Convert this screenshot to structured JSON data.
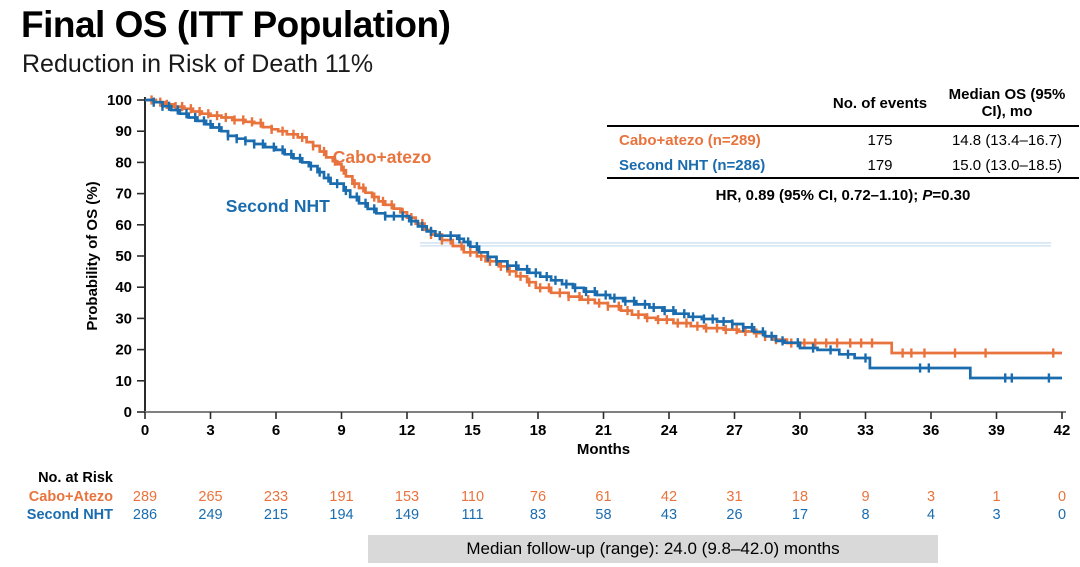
{
  "header": {
    "title": "Final OS (ITT Population)",
    "subtitle": "Reduction in Risk of Death 11%"
  },
  "colors": {
    "cabo": "#e8733c",
    "nht": "#1a6cae",
    "axis_y": "#2b2b2b",
    "axis_x": "#808080",
    "tick_text": "#000000",
    "ref_line": "#ccdff0",
    "footer_bg": "#d9d9d9"
  },
  "stats_table": {
    "col_headers": [
      "No. of events",
      "Median OS (95% CI), mo"
    ],
    "rows": [
      {
        "label": "Cabo+atezo (n=289)",
        "events": "175",
        "median": "14.8 (13.4–16.7)",
        "color_key": "cabo"
      },
      {
        "label": "Second NHT (n=286)",
        "events": "179",
        "median": "15.0 (13.0–18.5)",
        "color_key": "nht"
      }
    ],
    "hr_prefix": "HR, 0.89 (95% CI, 0.72–1.10); ",
    "hr_p_label": "P",
    "hr_p_value": "=0.30"
  },
  "chart_data": {
    "type": "line",
    "subtype": "kaplan-meier-step",
    "title": "Final OS (ITT Population)",
    "xlabel": "Months",
    "ylabel": "Probability of OS (%)",
    "xlim": [
      0,
      42
    ],
    "xticks": [
      0,
      3,
      6,
      9,
      12,
      15,
      18,
      21,
      24,
      27,
      30,
      33,
      36,
      39,
      42
    ],
    "ylim": [
      0,
      100
    ],
    "yticks": [
      0,
      10,
      20,
      30,
      40,
      50,
      60,
      70,
      80,
      90,
      100
    ],
    "grid": false,
    "reference_line": {
      "y": 54.2,
      "x_start": 12.6,
      "x_end": 41.5,
      "double_gap": 3
    },
    "series": [
      {
        "name": "Cabo+atezo",
        "color_key": "cabo",
        "label_pos": {
          "month": 8.6,
          "percent": 81.8
        },
        "steps": [
          [
            0,
            100
          ],
          [
            0.5,
            99.3
          ],
          [
            0.9,
            98.6
          ],
          [
            1.3,
            97.9
          ],
          [
            1.8,
            97.2
          ],
          [
            2.2,
            96.3
          ],
          [
            2.6,
            95.6
          ],
          [
            3.0,
            95.0
          ],
          [
            3.5,
            94.4
          ],
          [
            4.0,
            93.6
          ],
          [
            4.6,
            93.0
          ],
          [
            5.0,
            92.6
          ],
          [
            5.4,
            91.3
          ],
          [
            5.8,
            90.6
          ],
          [
            6.1,
            90.0
          ],
          [
            6.5,
            89.0
          ],
          [
            7.0,
            88.0
          ],
          [
            7.4,
            86.5
          ],
          [
            7.7,
            85.3
          ],
          [
            8.0,
            83.5
          ],
          [
            8.3,
            81.6
          ],
          [
            8.6,
            80.4
          ],
          [
            8.8,
            79.4
          ],
          [
            9.0,
            77.5
          ],
          [
            9.2,
            75.5
          ],
          [
            9.5,
            73.2
          ],
          [
            9.8,
            71.8
          ],
          [
            10.1,
            70.3
          ],
          [
            10.4,
            68.9
          ],
          [
            10.7,
            67.5
          ],
          [
            11.0,
            66.4
          ],
          [
            11.4,
            65.2
          ],
          [
            11.7,
            64.0
          ],
          [
            12.0,
            62.3
          ],
          [
            12.4,
            60.4
          ],
          [
            12.8,
            58.4
          ],
          [
            13.1,
            56.9
          ],
          [
            13.6,
            55.1
          ],
          [
            14.1,
            53.2
          ],
          [
            14.6,
            51.2
          ],
          [
            15.2,
            49.9
          ],
          [
            15.6,
            48.3
          ],
          [
            16.2,
            46.7
          ],
          [
            16.6,
            45.1
          ],
          [
            17.0,
            43.5
          ],
          [
            17.5,
            41.6
          ],
          [
            17.9,
            39.8
          ],
          [
            18.6,
            38.2
          ],
          [
            19.4,
            37.0
          ],
          [
            20.0,
            36.0
          ],
          [
            20.6,
            34.9
          ],
          [
            21.2,
            33.9
          ],
          [
            21.8,
            32.5
          ],
          [
            22.3,
            31.2
          ],
          [
            22.9,
            30.2
          ],
          [
            23.4,
            29.6
          ],
          [
            24.2,
            28.5
          ],
          [
            25.0,
            27.5
          ],
          [
            25.6,
            26.9
          ],
          [
            26.5,
            26.4
          ],
          [
            27.2,
            25.8
          ],
          [
            27.9,
            25.3
          ],
          [
            28.4,
            24.2
          ],
          [
            28.8,
            23.2
          ],
          [
            29.4,
            22.1
          ],
          [
            34.2,
            18.9
          ],
          [
            42,
            18.9
          ]
        ],
        "censor_months": [
          0.3,
          0.7,
          1.0,
          1.4,
          1.7,
          2.1,
          2.5,
          2.9,
          3.3,
          3.7,
          4.1,
          4.5,
          4.9,
          5.3,
          5.8,
          6.3,
          6.8,
          7.2,
          7.7,
          8.2,
          8.7,
          9.1,
          9.6,
          10.0,
          10.5,
          10.9,
          11.3,
          11.8,
          12.2,
          12.7,
          13.1,
          13.6,
          14.0,
          14.5,
          14.9,
          15.4,
          15.8,
          16.3,
          16.7,
          17.2,
          17.6,
          18.1,
          18.5,
          19.0,
          19.4,
          19.9,
          20.3,
          20.8,
          21.2,
          21.7,
          22.1,
          22.6,
          23.0,
          23.5,
          23.9,
          24.4,
          24.8,
          25.3,
          25.7,
          26.2,
          26.6,
          27.1,
          27.5,
          28.0,
          28.4,
          28.9,
          29.6,
          30.2,
          30.7,
          31.2,
          31.7,
          32.3,
          32.8,
          33.3,
          34.7,
          35.1,
          35.7,
          37.1,
          38.5,
          41.6
        ]
      },
      {
        "name": "Second NHT",
        "color_key": "nht",
        "label_pos": {
          "month": 3.7,
          "percent": 66.0
        },
        "steps": [
          [
            0,
            100
          ],
          [
            0.4,
            99.3
          ],
          [
            0.8,
            98.0
          ],
          [
            1.2,
            96.8
          ],
          [
            1.6,
            95.6
          ],
          [
            2.0,
            94.4
          ],
          [
            2.4,
            93.3
          ],
          [
            2.8,
            92.2
          ],
          [
            3.1,
            91.2
          ],
          [
            3.5,
            90.0
          ],
          [
            3.8,
            88.5
          ],
          [
            4.2,
            87.6
          ],
          [
            4.6,
            86.9
          ],
          [
            5.0,
            85.9
          ],
          [
            5.5,
            84.9
          ],
          [
            6.0,
            84.0
          ],
          [
            6.4,
            82.6
          ],
          [
            6.8,
            81.3
          ],
          [
            7.2,
            80.0
          ],
          [
            7.5,
            78.8
          ],
          [
            7.9,
            76.9
          ],
          [
            8.2,
            75.0
          ],
          [
            8.5,
            73.2
          ],
          [
            9.1,
            71.0
          ],
          [
            9.4,
            68.9
          ],
          [
            9.8,
            66.9
          ],
          [
            10.2,
            65.1
          ],
          [
            10.6,
            63.7
          ],
          [
            11.0,
            62.8
          ],
          [
            12.1,
            61.2
          ],
          [
            12.5,
            59.5
          ],
          [
            12.9,
            57.9
          ],
          [
            13.3,
            56.5
          ],
          [
            14.3,
            55.5
          ],
          [
            14.6,
            54.5
          ],
          [
            14.9,
            53.0
          ],
          [
            15.3,
            51.2
          ],
          [
            15.7,
            49.7
          ],
          [
            16.1,
            48.3
          ],
          [
            16.6,
            46.9
          ],
          [
            17.1,
            45.7
          ],
          [
            17.6,
            44.6
          ],
          [
            18.1,
            43.4
          ],
          [
            18.6,
            42.2
          ],
          [
            19.1,
            41.0
          ],
          [
            19.6,
            39.8
          ],
          [
            20.1,
            38.6
          ],
          [
            20.7,
            37.5
          ],
          [
            21.3,
            36.5
          ],
          [
            21.9,
            35.5
          ],
          [
            22.5,
            34.5
          ],
          [
            23.1,
            33.5
          ],
          [
            23.7,
            32.5
          ],
          [
            24.3,
            31.5
          ],
          [
            24.9,
            30.5
          ],
          [
            25.5,
            29.8
          ],
          [
            26.2,
            29.0
          ],
          [
            26.9,
            28.2
          ],
          [
            27.4,
            27.1
          ],
          [
            27.9,
            25.7
          ],
          [
            28.4,
            24.3
          ],
          [
            28.9,
            22.8
          ],
          [
            29.3,
            22.2
          ],
          [
            30.0,
            20.5
          ],
          [
            30.8,
            19.9
          ],
          [
            31.8,
            18.5
          ],
          [
            32.5,
            17.3
          ],
          [
            33.2,
            14.1
          ],
          [
            37.8,
            10.9
          ],
          [
            42,
            10.9
          ]
        ],
        "censor_months": [
          0.4,
          0.8,
          1.1,
          1.5,
          1.9,
          2.3,
          2.7,
          3.0,
          3.4,
          3.8,
          4.2,
          4.6,
          5.0,
          5.4,
          5.9,
          6.3,
          6.7,
          7.1,
          7.6,
          8.0,
          8.4,
          8.8,
          9.2,
          9.7,
          10.1,
          10.5,
          11.0,
          11.4,
          11.8,
          12.2,
          12.7,
          13.1,
          13.5,
          14.0,
          14.4,
          14.8,
          15.2,
          15.7,
          16.1,
          16.6,
          17.0,
          17.5,
          17.9,
          18.4,
          18.8,
          19.3,
          19.7,
          20.2,
          20.6,
          21.1,
          21.5,
          22.0,
          22.4,
          22.9,
          23.3,
          23.8,
          24.2,
          24.7,
          25.1,
          25.6,
          26.0,
          26.5,
          26.9,
          27.4,
          27.8,
          28.3,
          28.7,
          29.2,
          29.9,
          30.6,
          31.4,
          32.2,
          33.0,
          35.5,
          35.9,
          39.4,
          39.7,
          41.4
        ]
      }
    ]
  },
  "risk_table": {
    "title": "No. at Risk",
    "months": [
      0,
      3,
      6,
      9,
      12,
      15,
      18,
      21,
      24,
      27,
      30,
      33,
      36,
      39,
      42
    ],
    "rows": [
      {
        "label": "Cabo+Atezo",
        "color_key": "cabo",
        "values": [
          289,
          265,
          233,
          191,
          153,
          110,
          76,
          61,
          42,
          31,
          18,
          9,
          3,
          1,
          0
        ]
      },
      {
        "label": "Second NHT",
        "color_key": "nht",
        "values": [
          286,
          249,
          215,
          194,
          149,
          111,
          83,
          58,
          43,
          26,
          17,
          8,
          4,
          3,
          0
        ]
      }
    ]
  },
  "footer": {
    "text": "Median follow-up (range): 24.0 (9.8–42.0) months"
  }
}
